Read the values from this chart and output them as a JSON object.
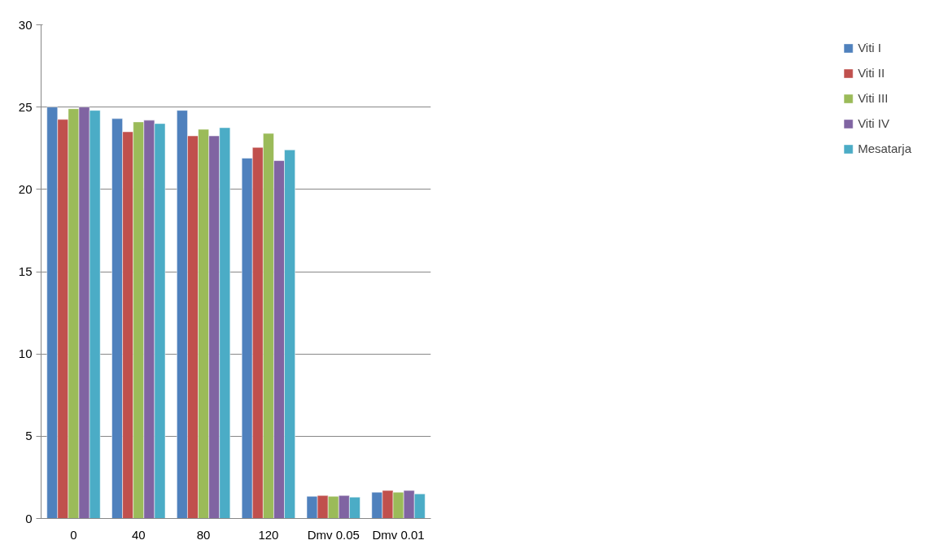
{
  "chart_data": {
    "type": "bar",
    "categories": [
      "0",
      "40",
      "80",
      "120",
      "Dmv 0.05",
      "Dmv 0.01"
    ],
    "series": [
      {
        "name": "Viti I",
        "color": "#4f81bd",
        "values": [
          25.0,
          24.3,
          24.8,
          21.9,
          1.35,
          1.6
        ]
      },
      {
        "name": "Viti II",
        "color": "#c0504d",
        "values": [
          24.25,
          23.5,
          23.25,
          22.55,
          1.4,
          1.7
        ]
      },
      {
        "name": "Viti III",
        "color": "#9bbb59",
        "values": [
          24.9,
          24.1,
          23.65,
          23.4,
          1.35,
          1.6
        ]
      },
      {
        "name": "Viti IV",
        "color": "#8064a2",
        "values": [
          25.0,
          24.2,
          23.25,
          21.75,
          1.4,
          1.7
        ]
      },
      {
        "name": "Mesatarja",
        "color": "#4bacc6",
        "values": [
          24.8,
          24.0,
          23.75,
          22.4,
          1.3,
          1.5
        ]
      }
    ],
    "ylim": [
      0,
      30
    ],
    "yticks": [
      0,
      5,
      10,
      15,
      20,
      25,
      30
    ],
    "grid": "y",
    "legend": "right"
  }
}
